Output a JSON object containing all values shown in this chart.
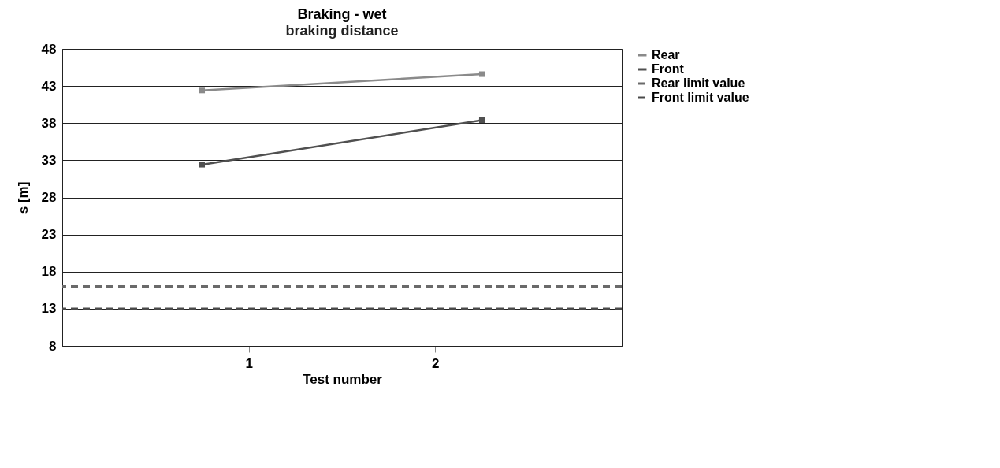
{
  "chart_data": {
    "type": "line",
    "title": "Braking - wet",
    "subtitle": "braking distance",
    "xlabel": "Test number",
    "ylabel": "s [m]",
    "x": [
      0.75,
      2.25
    ],
    "xlim": [
      0,
      3
    ],
    "xticks": [
      1,
      2
    ],
    "ylim": [
      8,
      48
    ],
    "yticks": [
      8,
      13,
      18,
      23,
      28,
      33,
      38,
      43,
      48
    ],
    "grid": "y",
    "legend": "right",
    "marker": "square",
    "series": [
      {
        "name": "Rear",
        "color": "#8a8a8a",
        "values": [
          42.4,
          44.6
        ]
      },
      {
        "name": "Front",
        "color": "#505050",
        "values": [
          32.4,
          38.4
        ]
      }
    ],
    "ref_lines": [
      {
        "axis": "y",
        "value": 16,
        "label": "Rear limit value",
        "color": "#6a6a6a",
        "line_style": "dashed"
      },
      {
        "axis": "y",
        "value": 13,
        "label": "Front limit value",
        "color": "#4a4a4a",
        "line_style": "dashed"
      }
    ]
  }
}
